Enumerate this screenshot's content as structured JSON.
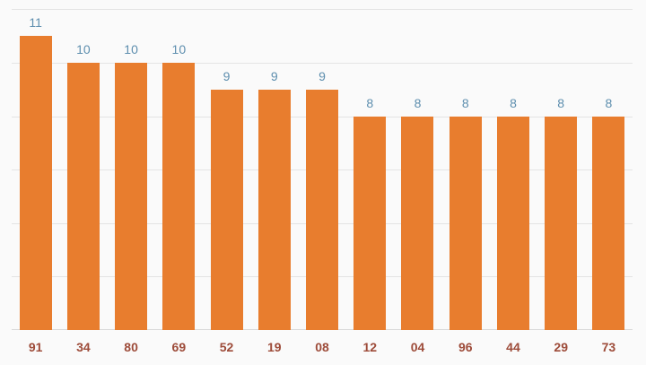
{
  "chart_data": {
    "type": "bar",
    "categories": [
      "91",
      "34",
      "80",
      "69",
      "52",
      "19",
      "08",
      "12",
      "04",
      "96",
      "44",
      "29",
      "73"
    ],
    "values": [
      11,
      10,
      10,
      10,
      9,
      9,
      9,
      8,
      8,
      8,
      8,
      8,
      8
    ],
    "title": "",
    "xlabel": "",
    "ylabel": "",
    "ylim": [
      0,
      12
    ],
    "gridline_interval": 2,
    "grid": "on",
    "legend": "none",
    "y_axis_labels": "hidden",
    "value_labels": "above-bars",
    "colors": {
      "background": "#fafafa",
      "bar": "#e87d2e",
      "value_label": "#5d8eae",
      "category_label": "#9d4b39",
      "gridline": "#e4e4e4",
      "baseline": "#d9d9d9"
    }
  }
}
